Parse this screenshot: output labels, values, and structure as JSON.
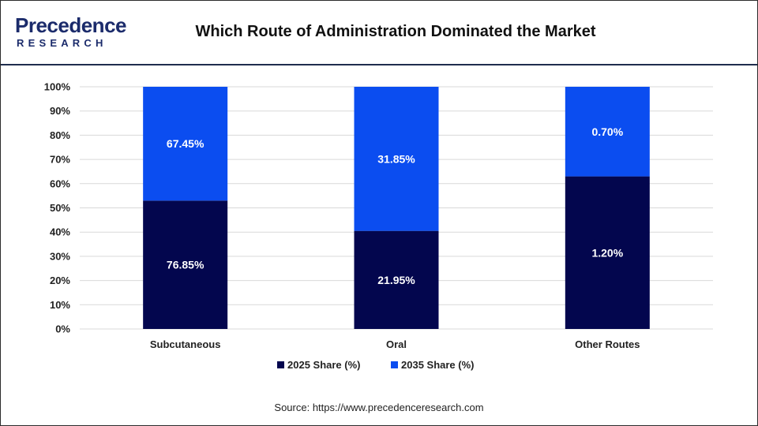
{
  "header": {
    "logo_main": "Precedence",
    "logo_sub": "RESEARCH",
    "title": "Which Route of Administration Dominated the Market"
  },
  "chart_data": {
    "type": "bar",
    "stacked": true,
    "categories": [
      "Subcutaneous",
      "Oral",
      "Other Routes"
    ],
    "series": [
      {
        "name": "2025 Share (%)",
        "color": "#03064e",
        "heights": [
          53,
          40.5,
          63
        ],
        "labels": [
          "76.85%",
          "21.95%",
          "1.20%"
        ]
      },
      {
        "name": "2035 Share (%)",
        "color": "#0b4df0",
        "heights": [
          47,
          59.5,
          37
        ],
        "labels": [
          "67.45%",
          "31.85%",
          "0.70%"
        ]
      }
    ],
    "ylim": [
      0,
      100
    ],
    "yticks": [
      "0%",
      "10%",
      "20%",
      "30%",
      "40%",
      "50%",
      "60%",
      "70%",
      "80%",
      "90%",
      "100%"
    ],
    "grid": true,
    "legend": "bottom"
  },
  "footer": {
    "source": "Source: https://www.precedenceresearch.com"
  }
}
